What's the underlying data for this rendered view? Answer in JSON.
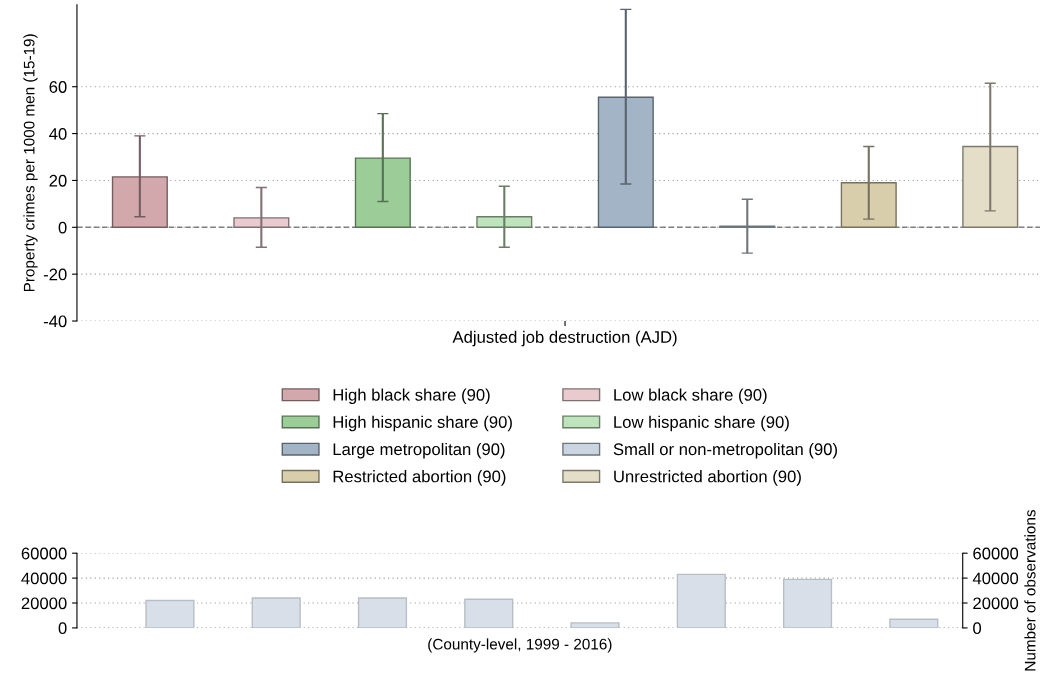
{
  "chart_data": [
    {
      "type": "bar",
      "ylabel": "Property crimes per 1000 men (15-19)",
      "categories": [
        "Adjusted job destruction (AJD)"
      ],
      "series": [
        {
          "name": "High black share (90)",
          "color": "#d2a8ad",
          "values": [
            21.5
          ],
          "errors": [
            [
              4.5,
              39
            ]
          ]
        },
        {
          "name": "Low black share (90)",
          "color": "#e9cbcf",
          "values": [
            4
          ],
          "errors": [
            [
              -8.5,
              17
            ]
          ]
        },
        {
          "name": "High hispanic share (90)",
          "color": "#9ccd98",
          "values": [
            29.5
          ],
          "errors": [
            [
              11,
              48.5
            ]
          ]
        },
        {
          "name": "Low hispanic share (90)",
          "color": "#bfe3bc",
          "values": [
            4.5
          ],
          "errors": [
            [
              -8.5,
              17.5
            ]
          ]
        },
        {
          "name": "Large metropolitan (90)",
          "color": "#a3b4c6",
          "values": [
            55.5
          ],
          "errors": [
            [
              18.5,
              93
            ]
          ]
        },
        {
          "name": "Small or non-metropolitan (90)",
          "color": "#cad5e1",
          "values": [
            0.5
          ],
          "errors": [
            [
              -11,
              12
            ]
          ]
        },
        {
          "name": "Restricted abortion (90)",
          "color": "#d8ceac",
          "values": [
            19
          ],
          "errors": [
            [
              3.5,
              34.5
            ]
          ]
        },
        {
          "name": "Unrestricted abortion (90)",
          "color": "#e4ddc7",
          "values": [
            34.5
          ],
          "errors": [
            [
              7,
              61.5
            ]
          ]
        }
      ],
      "ylim": [
        -40,
        95
      ],
      "yticks": [
        -40,
        -20,
        0,
        20,
        40,
        60
      ],
      "grid": "y",
      "legend": "bottom",
      "ref_lines": [
        {
          "axis": "y",
          "value": 0,
          "label": null,
          "color": "#808080",
          "line_style": "dashed"
        }
      ]
    },
    {
      "type": "bar",
      "xlabel": "(County-level, 1999 - 2016)",
      "y2label": "Number of observations",
      "categories": [
        null,
        null,
        null,
        null,
        null,
        null,
        null,
        null
      ],
      "series": [
        {
          "color": "#d8dfe8",
          "values": [
            22000,
            24000,
            24000,
            23000,
            4000,
            43000,
            39000,
            7000
          ]
        }
      ],
      "ylim": [
        0,
        60000
      ],
      "yticks": [
        0,
        20000,
        40000,
        60000
      ],
      "y2lim": [
        0,
        60000
      ],
      "y2ticks": [
        0,
        20000,
        40000,
        60000
      ],
      "grid": "y"
    }
  ]
}
